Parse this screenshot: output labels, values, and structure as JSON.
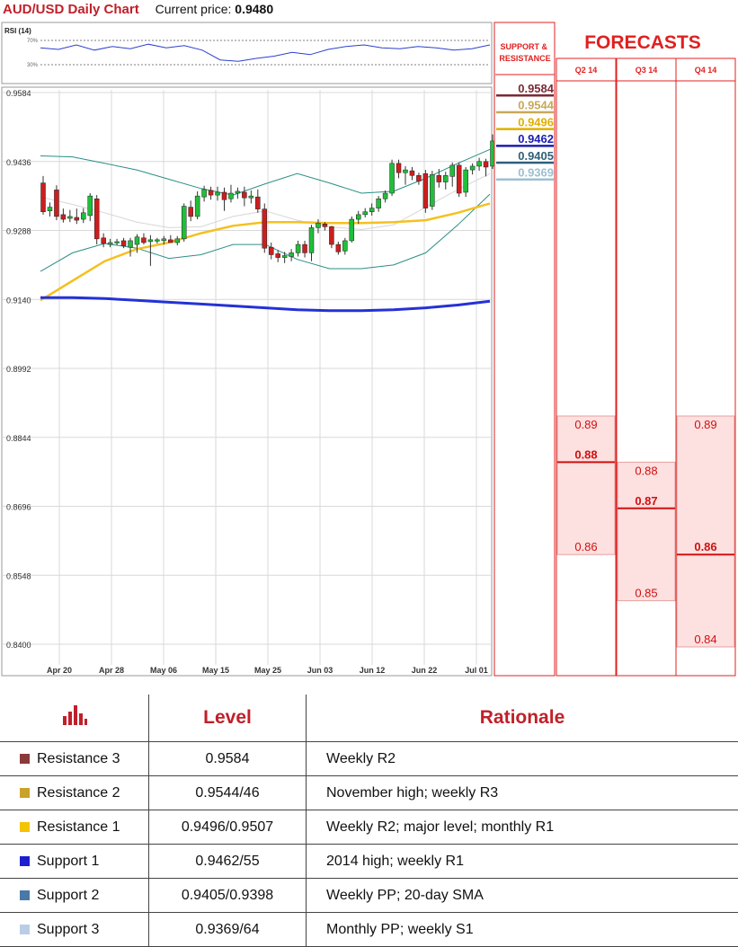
{
  "header": {
    "title": "AUD/USD Daily Chart",
    "current_price_label": "Current price:",
    "current_price": "0.9480"
  },
  "chart_data": {
    "type": "candlestick",
    "title": "AUD/USD Daily Chart",
    "ylim": [
      0.84,
      0.9584
    ],
    "y_ticks": [
      "0.9584",
      "0.9436",
      "0.9288",
      "0.9140",
      "0.8992",
      "0.8844",
      "0.8696",
      "0.8548",
      "0.8400"
    ],
    "x_ticks": [
      "Apr 20",
      "Apr 28",
      "May 06",
      "May 15",
      "May 25",
      "Jun 03",
      "Jun 12",
      "Jun 22",
      "Jul 01"
    ],
    "grid": true,
    "candles": [
      {
        "o": 0.939,
        "h": 0.9405,
        "l": 0.9322,
        "c": 0.9328
      },
      {
        "o": 0.933,
        "h": 0.9348,
        "l": 0.9318,
        "c": 0.9338
      },
      {
        "o": 0.9375,
        "h": 0.9385,
        "l": 0.931,
        "c": 0.9318
      },
      {
        "o": 0.9322,
        "h": 0.9335,
        "l": 0.9305,
        "c": 0.9312
      },
      {
        "o": 0.9314,
        "h": 0.9332,
        "l": 0.9306,
        "c": 0.9318
      },
      {
        "o": 0.9316,
        "h": 0.9335,
        "l": 0.9302,
        "c": 0.931
      },
      {
        "o": 0.9312,
        "h": 0.9336,
        "l": 0.9304,
        "c": 0.9326
      },
      {
        "o": 0.932,
        "h": 0.9368,
        "l": 0.9308,
        "c": 0.9362
      },
      {
        "o": 0.9356,
        "h": 0.9364,
        "l": 0.9258,
        "c": 0.927
      },
      {
        "o": 0.9272,
        "h": 0.9282,
        "l": 0.9252,
        "c": 0.926
      },
      {
        "o": 0.9258,
        "h": 0.927,
        "l": 0.9252,
        "c": 0.9262
      },
      {
        "o": 0.9262,
        "h": 0.927,
        "l": 0.9256,
        "c": 0.9264
      },
      {
        "o": 0.9266,
        "h": 0.9272,
        "l": 0.925,
        "c": 0.9255
      },
      {
        "o": 0.9252,
        "h": 0.9272,
        "l": 0.9232,
        "c": 0.9266
      },
      {
        "o": 0.9258,
        "h": 0.928,
        "l": 0.924,
        "c": 0.9274
      },
      {
        "o": 0.9272,
        "h": 0.9282,
        "l": 0.9258,
        "c": 0.9262
      },
      {
        "o": 0.9264,
        "h": 0.9278,
        "l": 0.9212,
        "c": 0.9268
      },
      {
        "o": 0.9266,
        "h": 0.9272,
        "l": 0.926,
        "c": 0.9268
      },
      {
        "o": 0.9266,
        "h": 0.9276,
        "l": 0.9258,
        "c": 0.927
      },
      {
        "o": 0.9268,
        "h": 0.9278,
        "l": 0.9262,
        "c": 0.9262
      },
      {
        "o": 0.9262,
        "h": 0.9276,
        "l": 0.9256,
        "c": 0.927
      },
      {
        "o": 0.927,
        "h": 0.9346,
        "l": 0.9264,
        "c": 0.934
      },
      {
        "o": 0.9338,
        "h": 0.9352,
        "l": 0.9308,
        "c": 0.9318
      },
      {
        "o": 0.9318,
        "h": 0.9372,
        "l": 0.9312,
        "c": 0.9362
      },
      {
        "o": 0.936,
        "h": 0.9384,
        "l": 0.935,
        "c": 0.9376
      },
      {
        "o": 0.9374,
        "h": 0.9382,
        "l": 0.9354,
        "c": 0.9364
      },
      {
        "o": 0.9364,
        "h": 0.9382,
        "l": 0.9352,
        "c": 0.937
      },
      {
        "o": 0.937,
        "h": 0.938,
        "l": 0.933,
        "c": 0.9354
      },
      {
        "o": 0.9356,
        "h": 0.9386,
        "l": 0.9348,
        "c": 0.9368
      },
      {
        "o": 0.9368,
        "h": 0.938,
        "l": 0.9356,
        "c": 0.9372
      },
      {
        "o": 0.937,
        "h": 0.9382,
        "l": 0.934,
        "c": 0.9358
      },
      {
        "o": 0.9358,
        "h": 0.9374,
        "l": 0.9346,
        "c": 0.9362
      },
      {
        "o": 0.936,
        "h": 0.9376,
        "l": 0.9326,
        "c": 0.9334
      },
      {
        "o": 0.9334,
        "h": 0.9346,
        "l": 0.924,
        "c": 0.925
      },
      {
        "o": 0.9252,
        "h": 0.9262,
        "l": 0.9226,
        "c": 0.9236
      },
      {
        "o": 0.9238,
        "h": 0.9246,
        "l": 0.922,
        "c": 0.923
      },
      {
        "o": 0.923,
        "h": 0.9242,
        "l": 0.9218,
        "c": 0.9234
      },
      {
        "o": 0.9232,
        "h": 0.9248,
        "l": 0.9222,
        "c": 0.924
      },
      {
        "o": 0.924,
        "h": 0.9266,
        "l": 0.9232,
        "c": 0.9258
      },
      {
        "o": 0.9258,
        "h": 0.9266,
        "l": 0.923,
        "c": 0.924
      },
      {
        "o": 0.924,
        "h": 0.93,
        "l": 0.9222,
        "c": 0.9294
      },
      {
        "o": 0.9294,
        "h": 0.9312,
        "l": 0.9282,
        "c": 0.9304
      },
      {
        "o": 0.9302,
        "h": 0.9306,
        "l": 0.9288,
        "c": 0.9296
      },
      {
        "o": 0.9296,
        "h": 0.9298,
        "l": 0.925,
        "c": 0.9258
      },
      {
        "o": 0.9258,
        "h": 0.9264,
        "l": 0.9236,
        "c": 0.9242
      },
      {
        "o": 0.9244,
        "h": 0.9272,
        "l": 0.9236,
        "c": 0.9266
      },
      {
        "o": 0.9266,
        "h": 0.9318,
        "l": 0.9262,
        "c": 0.9312
      },
      {
        "o": 0.9312,
        "h": 0.933,
        "l": 0.9302,
        "c": 0.9322
      },
      {
        "o": 0.9322,
        "h": 0.9336,
        "l": 0.9316,
        "c": 0.9328
      },
      {
        "o": 0.9328,
        "h": 0.9346,
        "l": 0.932,
        "c": 0.9336
      },
      {
        "o": 0.9336,
        "h": 0.9362,
        "l": 0.9328,
        "c": 0.9356
      },
      {
        "o": 0.9356,
        "h": 0.9374,
        "l": 0.9348,
        "c": 0.9368
      },
      {
        "o": 0.9368,
        "h": 0.944,
        "l": 0.9362,
        "c": 0.9432
      },
      {
        "o": 0.9432,
        "h": 0.944,
        "l": 0.94,
        "c": 0.9412
      },
      {
        "o": 0.9412,
        "h": 0.9426,
        "l": 0.9386,
        "c": 0.9418
      },
      {
        "o": 0.9416,
        "h": 0.9424,
        "l": 0.9396,
        "c": 0.9406
      },
      {
        "o": 0.9406,
        "h": 0.9412,
        "l": 0.9386,
        "c": 0.9394
      },
      {
        "o": 0.941,
        "h": 0.9418,
        "l": 0.9326,
        "c": 0.9336
      },
      {
        "o": 0.934,
        "h": 0.9416,
        "l": 0.9332,
        "c": 0.9408
      },
      {
        "o": 0.9406,
        "h": 0.942,
        "l": 0.938,
        "c": 0.9392
      },
      {
        "o": 0.9392,
        "h": 0.9414,
        "l": 0.9376,
        "c": 0.9406
      },
      {
        "o": 0.9404,
        "h": 0.9434,
        "l": 0.9382,
        "c": 0.9428
      },
      {
        "o": 0.9428,
        "h": 0.9434,
        "l": 0.936,
        "c": 0.9368
      },
      {
        "o": 0.937,
        "h": 0.9424,
        "l": 0.936,
        "c": 0.9418
      },
      {
        "o": 0.9418,
        "h": 0.9432,
        "l": 0.9408,
        "c": 0.9426
      },
      {
        "o": 0.9426,
        "h": 0.9444,
        "l": 0.9416,
        "c": 0.9436
      },
      {
        "o": 0.9436,
        "h": 0.9442,
        "l": 0.9404,
        "c": 0.9424
      },
      {
        "o": 0.9426,
        "h": 0.9494,
        "l": 0.942,
        "c": 0.948
      }
    ],
    "indicators": [
      {
        "kind": "bollinger",
        "color": "#2a8f86",
        "upper": [
          0.9448,
          0.9446,
          0.9432,
          0.9418,
          0.9398,
          0.9378,
          0.9364,
          0.9388,
          0.941,
          0.939,
          0.9368,
          0.9372,
          0.94,
          0.9432,
          0.9462
        ],
        "middle": [
          0.936,
          0.9344,
          0.9326,
          0.9306,
          0.9294,
          0.9296,
          0.9318,
          0.933,
          0.931,
          0.9296,
          0.929,
          0.93,
          0.9338,
          0.9376,
          0.941
        ],
        "lower": [
          0.92,
          0.924,
          0.926,
          0.925,
          0.9228,
          0.9236,
          0.9258,
          0.9258,
          0.9226,
          0.9206,
          0.9206,
          0.9214,
          0.924,
          0.93,
          0.9366
        ]
      },
      {
        "kind": "sma",
        "color": "#f5c020",
        "values": [
          0.9138,
          0.918,
          0.9222,
          0.9248,
          0.9262,
          0.9282,
          0.9298,
          0.9306,
          0.9306,
          0.9304,
          0.9304,
          0.9306,
          0.931,
          0.9326,
          0.9346
        ]
      },
      {
        "kind": "sma",
        "color": "#2431d6",
        "values": [
          0.9144,
          0.9144,
          0.9142,
          0.9138,
          0.9134,
          0.913,
          0.9126,
          0.9122,
          0.9118,
          0.9116,
          0.9116,
          0.9118,
          0.9122,
          0.9128,
          0.9136
        ]
      }
    ],
    "rsi": {
      "label": "RSI (14)",
      "levels": [
        "70%",
        "30%"
      ],
      "values": [
        58,
        56,
        62,
        55,
        60,
        57,
        63,
        58,
        61,
        55,
        42,
        40,
        44,
        47,
        52,
        49,
        56,
        60,
        62,
        58,
        57,
        60,
        58,
        55,
        57,
        62
      ]
    }
  },
  "support_resistance": {
    "header": "SUPPORT & RESISTANCE",
    "levels": [
      {
        "value": "0.9584",
        "color": "#7a2a36"
      },
      {
        "value": "0.9544",
        "color": "#c8a85a"
      },
      {
        "value": "0.9496",
        "color": "#e0b000"
      },
      {
        "value": "0.9462",
        "color": "#1b1fb0"
      },
      {
        "value": "0.9405",
        "color": "#2f5f7a"
      },
      {
        "value": "0.9369",
        "color": "#9cbfd1"
      }
    ]
  },
  "forecasts": {
    "title": "FORECASTS",
    "quarters": [
      {
        "label": "Q2 14",
        "high": "0.89",
        "mid": "0.88",
        "low": "0.86",
        "high_v": 0.89,
        "mid_v": 0.88,
        "low_v": 0.86
      },
      {
        "label": "Q3 14",
        "high": "0.88",
        "mid": "0.87",
        "low": "0.85",
        "high_v": 0.88,
        "mid_v": 0.87,
        "low_v": 0.85
      },
      {
        "label": "Q4 14",
        "high": "0.89",
        "mid": "0.86",
        "low": "0.84",
        "high_v": 0.89,
        "mid_v": 0.86,
        "low_v": 0.84
      }
    ]
  },
  "table": {
    "headers": {
      "level": "Level",
      "rationale": "Rationale",
      "icon": "bar-chart-icon"
    },
    "rows": [
      {
        "name": "Resistance 3",
        "level": "0.9584",
        "rationale": "Weekly R2",
        "color": "#8b3a3a"
      },
      {
        "name": "Resistance 2",
        "level": "0.9544/46",
        "rationale": "November high; weekly R3",
        "color": "#c9a227"
      },
      {
        "name": "Resistance 1",
        "level": "0.9496/0.9507",
        "rationale": "Weekly R2; major level; monthly R1",
        "color": "#f5c400"
      },
      {
        "name": "Support 1",
        "level": "0.9462/55",
        "rationale": "2014 high; weekly R1",
        "color": "#1b1fd0"
      },
      {
        "name": "Support 2",
        "level": "0.9405/0.9398",
        "rationale": "Weekly PP;  20-day SMA",
        "color": "#4a78a8"
      },
      {
        "name": "Support 3",
        "level": "0.9369/64",
        "rationale": "Monthly PP; weekly S1",
        "color": "#b9cde6"
      }
    ]
  }
}
